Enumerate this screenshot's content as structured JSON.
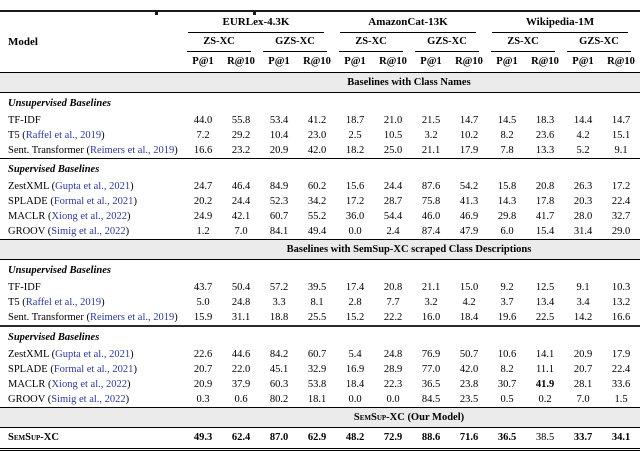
{
  "colors": {
    "citation_blue": "#2b3a9c",
    "band_bg": "#ebebeb"
  },
  "table": {
    "model_header": "Model",
    "dataset_groups": [
      "EURLex-4.3K",
      "AmazonCat-13K",
      "Wikipedia-1M"
    ],
    "settings": [
      "ZS-XC",
      "GZS-XC"
    ],
    "metrics": [
      "P@1",
      "R@10"
    ],
    "sections": [
      {
        "band": "Baselines with Class Names",
        "groups": [
          {
            "subheader": "Unsupervised Baselines",
            "rule_above": null,
            "rows": [
              {
                "model": "TF-IDF",
                "citation": null,
                "values": [
                  "44.0",
                  "55.8",
                  "53.4",
                  "41.2",
                  "18.7",
                  "21.0",
                  "21.5",
                  "14.7",
                  "14.5",
                  "18.3",
                  "14.4",
                  "14.7"
                ]
              },
              {
                "model": "T5",
                "citation": "Raffel et al., 2019",
                "values": [
                  "7.2",
                  "29.2",
                  "10.4",
                  "23.0",
                  "2.5",
                  "10.5",
                  "3.2",
                  "10.2",
                  "8.2",
                  "23.6",
                  "4.2",
                  "15.1"
                ]
              },
              {
                "model": "Sent. Transformer",
                "citation": "Reimers et al., 2019",
                "values": [
                  "16.6",
                  "23.2",
                  "20.9",
                  "42.0",
                  "18.2",
                  "25.0",
                  "21.1",
                  "17.9",
                  "7.8",
                  "13.3",
                  "5.2",
                  "9.1"
                ]
              }
            ]
          },
          {
            "subheader": "Supervised Baselines",
            "rule_above": "thin",
            "rows": [
              {
                "model": "ZestXML",
                "citation": "Gupta et al., 2021",
                "values": [
                  "24.7",
                  "46.4",
                  "84.9",
                  "60.2",
                  "15.6",
                  "24.4",
                  "87.6",
                  "54.2",
                  "15.8",
                  "20.8",
                  "26.3",
                  "17.2"
                ]
              },
              {
                "model": "SPLADE",
                "citation": "Formal et al., 2021",
                "values": [
                  "20.2",
                  "24.4",
                  "52.3",
                  "34.2",
                  "17.2",
                  "28.7",
                  "75.8",
                  "41.3",
                  "14.3",
                  "17.8",
                  "20.3",
                  "22.4"
                ]
              },
              {
                "model": "MACLR",
                "citation": "Xiong et al., 2022",
                "values": [
                  "24.9",
                  "42.1",
                  "60.7",
                  "55.2",
                  "36.0",
                  "54.4",
                  "46.0",
                  "46.9",
                  "29.8",
                  "41.7",
                  "28.0",
                  "32.7"
                ]
              },
              {
                "model": "GROOV",
                "citation": "Simig et al., 2022",
                "values": [
                  "1.2",
                  "7.0",
                  "84.1",
                  "49.4",
                  "0.0",
                  "2.4",
                  "87.4",
                  "47.9",
                  "6.0",
                  "15.4",
                  "31.4",
                  "29.0"
                ]
              }
            ]
          }
        ]
      },
      {
        "band": "Baselines with SemSup-XC scraped Class Descriptions",
        "groups": [
          {
            "subheader": "Unsupervised Baselines",
            "rule_above": null,
            "rows": [
              {
                "model": "TF-IDF",
                "citation": null,
                "values": [
                  "43.7",
                  "50.4",
                  "57.2",
                  "39.5",
                  "17.4",
                  "20.8",
                  "21.1",
                  "15.0",
                  "9.2",
                  "12.5",
                  "9.1",
                  "10.3"
                ]
              },
              {
                "model": "T5",
                "citation": "Raffel et al., 2019",
                "values": [
                  "5.0",
                  "24.8",
                  "3.3",
                  "8.1",
                  "2.8",
                  "7.7",
                  "3.2",
                  "4.2",
                  "3.7",
                  "13.4",
                  "3.4",
                  "13.2"
                ]
              },
              {
                "model": "Sent. Transformer",
                "citation": "Reimers et al., 2019",
                "values": [
                  "15.9",
                  "31.1",
                  "18.8",
                  "25.5",
                  "15.2",
                  "22.2",
                  "16.0",
                  "18.4",
                  "19.6",
                  "22.5",
                  "14.2",
                  "16.6"
                ]
              }
            ]
          },
          {
            "subheader": "Supervised Baselines",
            "rule_above": "thick",
            "rows": [
              {
                "model": "ZestXML",
                "citation": "Gupta et al., 2021",
                "values": [
                  "22.6",
                  "44.6",
                  "84.2",
                  "60.7",
                  "5.4",
                  "24.8",
                  "76.9",
                  "50.7",
                  "10.6",
                  "14.1",
                  "20.9",
                  "17.9"
                ]
              },
              {
                "model": "SPLADE",
                "citation": "Formal et al., 2021",
                "values": [
                  "20.7",
                  "22.0",
                  "45.1",
                  "32.9",
                  "16.9",
                  "28.9",
                  "77.0",
                  "42.0",
                  "8.2",
                  "11.1",
                  "20.7",
                  "22.4"
                ]
              },
              {
                "model": "MACLR",
                "citation": "Xiong et al., 2022",
                "values": [
                  "20.9",
                  "37.9",
                  "60.3",
                  "53.8",
                  "18.4",
                  "22.3",
                  "36.5",
                  "23.8",
                  "30.7",
                  "41.9",
                  "28.1",
                  "33.6"
                ],
                "bold_values": [
                  9
                ]
              },
              {
                "model": "GROOV",
                "citation": "Simig et al., 2022",
                "values": [
                  "0.3",
                  "0.6",
                  "80.2",
                  "18.1",
                  "0.0",
                  "0.0",
                  "84.5",
                  "23.5",
                  "0.5",
                  "0.2",
                  "7.0",
                  "1.5"
                ]
              }
            ]
          }
        ]
      },
      {
        "band": "SemSup-XC (Our Model)",
        "band_smallcaps_prefix": "SemSup-XC",
        "band_suffix": " (Our Model)",
        "groups": [
          {
            "subheader": null,
            "rule_above": null,
            "rows": [
              {
                "model": "SemSup-XC",
                "citation": null,
                "model_smallcaps": true,
                "model_bold": true,
                "final": true,
                "values": [
                  "49.3",
                  "62.4",
                  "87.0",
                  "62.9",
                  "48.2",
                  "72.9",
                  "88.6",
                  "71.6",
                  "36.5",
                  "38.5",
                  "33.7",
                  "34.1"
                ],
                "bold_values": [
                  0,
                  1,
                  2,
                  3,
                  4,
                  5,
                  6,
                  7,
                  8,
                  10,
                  11
                ]
              }
            ]
          }
        ]
      }
    ]
  }
}
